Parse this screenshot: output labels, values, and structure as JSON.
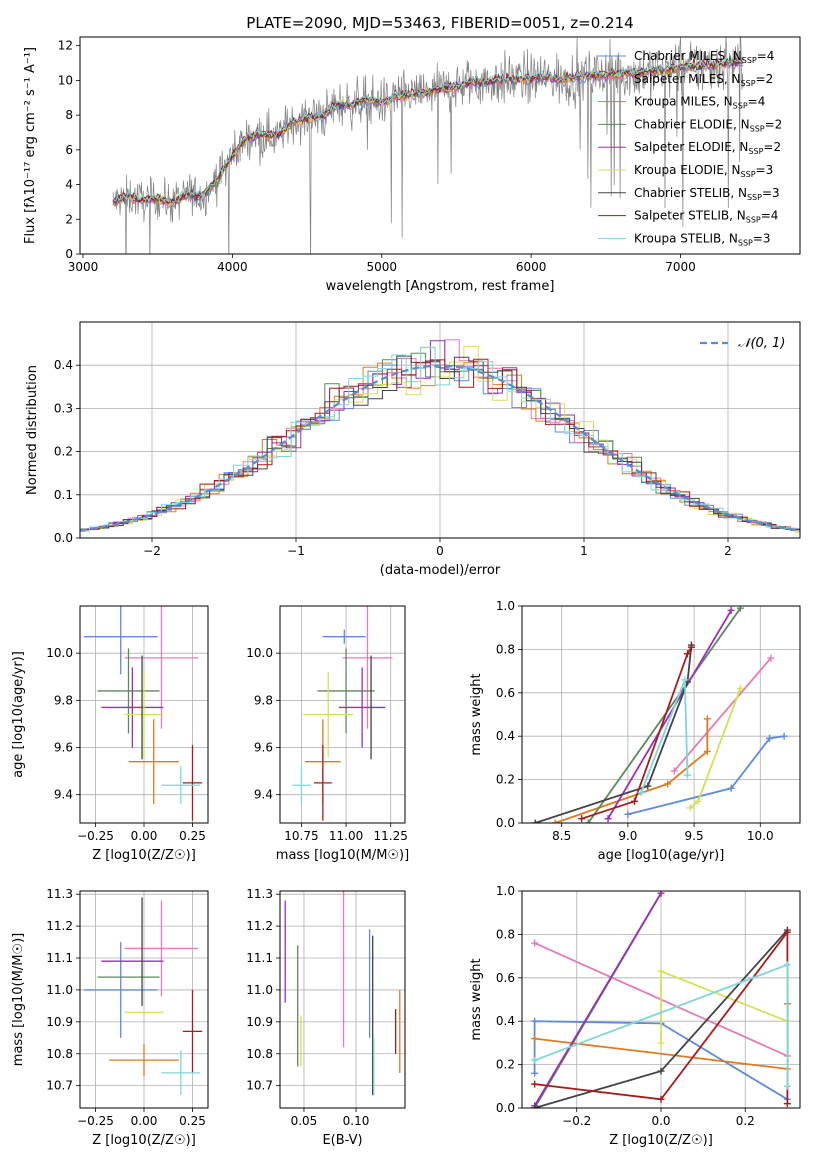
{
  "figure_title": "PLATE=2090, MJD=53463, FIBERID=0051, z=0.214",
  "colors": {
    "Chabrier MILES": "#5e8bdc",
    "Salpeter MILES": "#e67cb5",
    "Kroupa MILES": "#e07a1f",
    "Chabrier ELODIE": "#5a8a5a",
    "Salpeter ELODIE": "#9a2fb8",
    "Kroupa ELODIE": "#d4e157",
    "Chabrier STELIB": "#444444",
    "Salpeter STELIB": "#a51c1c",
    "Kroupa STELIB": "#7fd6dd",
    "data": "#808080",
    "normal": "#5b8bd6",
    "grid": "#b0b0b0"
  },
  "chart_data": [
    {
      "id": "spectrum",
      "type": "line",
      "title": "PLATE=2090, MJD=53463, FIBERID=0051, z=0.214",
      "xlabel": "wavelength [Angstrom, rest frame]",
      "ylabel": "Flux [fλ10⁻¹⁷ erg cm⁻² s⁻¹ A⁻¹]",
      "xlim": [
        2980,
        7800
      ],
      "ylim": [
        0,
        12.5
      ],
      "xticks": [
        3000,
        4000,
        5000,
        6000,
        7000
      ],
      "yticks": [
        0,
        2,
        4,
        6,
        8,
        10,
        12
      ],
      "grid": false,
      "legend_position": "top-right",
      "continuum": {
        "x": [
          3200,
          3300,
          3400,
          3500,
          3600,
          3700,
          3800,
          3900,
          4000,
          4100,
          4200,
          4300,
          4400,
          4500,
          4600,
          4700,
          4800,
          4900,
          5000,
          5100,
          5200,
          5300,
          5400,
          5500,
          5600,
          5700,
          5800,
          5900,
          6000,
          6100,
          6200,
          6300,
          6400,
          6500,
          6600,
          6700,
          6800,
          6900,
          7000,
          7100,
          7200,
          7300,
          7420
        ],
        "y": [
          3.0,
          3.3,
          3.1,
          3.2,
          2.9,
          3.5,
          3.3,
          4.3,
          5.7,
          6.7,
          6.9,
          6.8,
          7.6,
          7.8,
          7.9,
          8.6,
          8.6,
          8.9,
          8.7,
          9.1,
          9.2,
          9.3,
          9.5,
          9.6,
          9.9,
          9.9,
          10.0,
          10.1,
          10.1,
          10.2,
          10.0,
          10.2,
          10.3,
          10.3,
          10.4,
          10.4,
          10.5,
          10.6,
          10.8,
          10.8,
          10.9,
          11.0,
          11.1
        ]
      },
      "series": [
        {
          "name": "Chabrier MILES, N_SSP=4",
          "label_main": "Chabrier MILES, N",
          "label_sub": "SSP",
          "label_tail": "=4",
          "color_key": "Chabrier MILES"
        },
        {
          "name": "Salpeter MILES, N_SSP=2",
          "label_main": "Salpeter MILES, N",
          "label_sub": "SSP",
          "label_tail": "=2",
          "color_key": "Salpeter MILES"
        },
        {
          "name": "Kroupa MILES, N_SSP=4",
          "label_main": "Kroupa MILES, N",
          "label_sub": "SSP",
          "label_tail": "=4",
          "color_key": "Kroupa MILES"
        },
        {
          "name": "Chabrier ELODIE, N_SSP=2",
          "label_main": "Chabrier ELODIE, N",
          "label_sub": "SSP",
          "label_tail": "=2",
          "color_key": "Chabrier ELODIE"
        },
        {
          "name": "Salpeter ELODIE, N_SSP=2",
          "label_main": "Salpeter ELODIE, N",
          "label_sub": "SSP",
          "label_tail": "=2",
          "color_key": "Salpeter ELODIE"
        },
        {
          "name": "Kroupa ELODIE, N_SSP=3",
          "label_main": "Kroupa ELODIE, N",
          "label_sub": "SSP",
          "label_tail": "=3",
          "color_key": "Kroupa ELODIE"
        },
        {
          "name": "Chabrier STELIB, N_SSP=3",
          "label_main": "Chabrier STELIB, N",
          "label_sub": "SSP",
          "label_tail": "=3",
          "color_key": "Chabrier STELIB"
        },
        {
          "name": "Salpeter STELIB, N_SSP=4",
          "label_main": "Salpeter STELIB, N",
          "label_sub": "SSP",
          "label_tail": "=4",
          "color_key": "Salpeter STELIB"
        },
        {
          "name": "Kroupa STELIB, N_SSP=3",
          "label_main": "Kroupa STELIB, N",
          "label_sub": "SSP",
          "label_tail": "=3",
          "color_key": "Kroupa STELIB"
        }
      ]
    },
    {
      "id": "residuals",
      "type": "line",
      "xlabel": "(data-model)/error",
      "ylabel": "Normed distribution",
      "xlim": [
        -2.5,
        2.5
      ],
      "ylim": [
        0,
        0.5
      ],
      "xticks": [
        -2,
        -1,
        0,
        1,
        2
      ],
      "yticks": [
        0.0,
        0.1,
        0.2,
        0.3,
        0.4
      ],
      "grid": true,
      "legend_position": "top-right",
      "normal_label": "𝒩(0, 1)",
      "histogram_bin_width": 0.1
    },
    {
      "id": "age_vs_Z",
      "type": "scatter",
      "xlabel": "Z [log10(Z/Z☉)]",
      "ylabel": "age  [log10(age/yr)]",
      "xlim": [
        -0.33,
        0.33
      ],
      "ylim": [
        9.28,
        10.2
      ],
      "xticks": [
        -0.25,
        0.0,
        0.25
      ],
      "yticks": [
        9.4,
        9.6,
        9.8,
        10.0
      ],
      "grid": true,
      "points": [
        {
          "model": "Chabrier MILES",
          "x": -0.12,
          "xerr": 0.19,
          "y": 10.07,
          "yerr": 0.16
        },
        {
          "model": "Salpeter MILES",
          "x": 0.09,
          "xerr": 0.19,
          "y": 9.98,
          "yerr": 0.3
        },
        {
          "model": "Kroupa MILES",
          "x": 0.05,
          "xerr": 0.13,
          "y": 9.54,
          "yerr": 0.18
        },
        {
          "model": "Chabrier ELODIE",
          "x": -0.08,
          "xerr": 0.16,
          "y": 9.84,
          "yerr": 0.18
        },
        {
          "model": "Salpeter ELODIE",
          "x": -0.06,
          "xerr": 0.16,
          "y": 9.77,
          "yerr": 0.17
        },
        {
          "model": "Kroupa ELODIE",
          "x": 0.0,
          "xerr": 0.1,
          "y": 9.74,
          "yerr": 0.18
        },
        {
          "model": "Chabrier STELIB",
          "x": -0.01,
          "xerr": 0.0,
          "y": 9.77,
          "yerr": 0.22
        },
        {
          "model": "Salpeter STELIB",
          "x": 0.25,
          "xerr": 0.05,
          "y": 9.45,
          "yerr": 0.16
        },
        {
          "model": "Kroupa STELIB",
          "x": 0.19,
          "xerr": 0.1,
          "y": 9.44,
          "yerr": 0.08
        }
      ]
    },
    {
      "id": "age_vs_mass",
      "type": "scatter",
      "xlabel": "mass [log10(M/M☉)]",
      "ylabel": "",
      "xlim": [
        10.63,
        11.33
      ],
      "ylim": [
        9.28,
        10.2
      ],
      "xticks": [
        10.75,
        11.0,
        11.25
      ],
      "yticks": [
        9.4,
        9.6,
        9.8,
        10.0
      ],
      "grid": true,
      "points": [
        {
          "model": "Chabrier MILES",
          "x": 10.99,
          "xerr": 0.12,
          "y": 10.07,
          "yerr": 0.03
        },
        {
          "model": "Salpeter MILES",
          "x": 11.12,
          "xerr": 0.14,
          "y": 9.98,
          "yerr": 0.3
        },
        {
          "model": "Kroupa MILES",
          "x": 10.87,
          "xerr": 0.1,
          "y": 9.54,
          "yerr": 0.18
        },
        {
          "model": "Chabrier ELODIE",
          "x": 11.0,
          "xerr": 0.16,
          "y": 9.84,
          "yerr": 0.18
        },
        {
          "model": "Salpeter ELODIE",
          "x": 11.09,
          "xerr": 0.13,
          "y": 9.77,
          "yerr": 0.17
        },
        {
          "model": "Kroupa ELODIE",
          "x": 10.9,
          "xerr": 0.14,
          "y": 9.74,
          "yerr": 0.18
        },
        {
          "model": "Chabrier STELIB",
          "x": 11.14,
          "xerr": 0.0,
          "y": 9.77,
          "yerr": 0.22
        },
        {
          "model": "Salpeter STELIB",
          "x": 10.87,
          "xerr": 0.05,
          "y": 9.45,
          "yerr": 0.16
        },
        {
          "model": "Kroupa STELIB",
          "x": 10.75,
          "xerr": 0.05,
          "y": 9.44,
          "yerr": 0.08
        }
      ]
    },
    {
      "id": "weight_vs_age",
      "type": "line",
      "xlabel": "age  [log10(age/yr)]",
      "ylabel": "mass weight",
      "xlim": [
        8.2,
        10.3
      ],
      "ylim": [
        0,
        1.0
      ],
      "xticks": [
        8.5,
        9.0,
        9.5,
        10.0
      ],
      "yticks": [
        0.0,
        0.2,
        0.4,
        0.6,
        0.8,
        1.0
      ],
      "grid": true,
      "series": [
        {
          "model": "Chabrier MILES",
          "x": [
            9.0,
            9.78,
            10.07,
            10.18
          ],
          "y": [
            0.04,
            0.16,
            0.39,
            0.4
          ]
        },
        {
          "model": "Salpeter MILES",
          "x": [
            9.35,
            10.08
          ],
          "y": [
            0.24,
            0.76
          ]
        },
        {
          "model": "Kroupa MILES",
          "x": [
            8.45,
            9.3,
            9.6,
            9.6
          ],
          "y": [
            0.0,
            0.18,
            0.33,
            0.48
          ]
        },
        {
          "model": "Chabrier ELODIE",
          "x": [
            8.7,
            9.85
          ],
          "y": [
            0.0,
            0.99
          ]
        },
        {
          "model": "Salpeter ELODIE",
          "x": [
            8.85,
            9.78
          ],
          "y": [
            0.02,
            0.98
          ]
        },
        {
          "model": "Kroupa ELODIE",
          "x": [
            9.47,
            9.53,
            9.85
          ],
          "y": [
            0.07,
            0.1,
            0.62
          ]
        },
        {
          "model": "Chabrier STELIB",
          "x": [
            8.3,
            9.15,
            9.45,
            9.48
          ],
          "y": [
            0.0,
            0.17,
            0.65,
            0.82
          ]
        },
        {
          "model": "Salpeter STELIB",
          "x": [
            8.65,
            9.05,
            9.45,
            9.48
          ],
          "y": [
            0.02,
            0.1,
            0.78,
            0.81
          ]
        },
        {
          "model": "Kroupa STELIB",
          "x": [
            9.1,
            9.43,
            9.45
          ],
          "y": [
            0.14,
            0.66,
            0.22
          ]
        }
      ]
    },
    {
      "id": "mass_vs_Z",
      "type": "scatter",
      "xlabel": "Z [log10(Z/Z☉)]",
      "ylabel": "mass [log10(M/M☉)]",
      "xlim": [
        -0.33,
        0.33
      ],
      "ylim": [
        10.63,
        11.31
      ],
      "xticks": [
        -0.25,
        0.0,
        0.25
      ],
      "yticks": [
        10.7,
        10.8,
        10.9,
        11.0,
        11.1,
        11.2,
        11.3
      ],
      "grid": true,
      "points": [
        {
          "model": "Chabrier MILES",
          "x": -0.12,
          "xerr": 0.19,
          "y": 11.0,
          "yerr": 0.15
        },
        {
          "model": "Salpeter MILES",
          "x": 0.09,
          "xerr": 0.19,
          "y": 11.13,
          "yerr": 0.15
        },
        {
          "model": "Kroupa MILES",
          "x": 0.0,
          "xerr": 0.18,
          "y": 10.78,
          "yerr": 0.05
        },
        {
          "model": "Chabrier ELODIE",
          "x": -0.08,
          "xerr": 0.16,
          "y": 11.04,
          "yerr": 0.0
        },
        {
          "model": "Salpeter ELODIE",
          "x": -0.06,
          "xerr": 0.16,
          "y": 11.09,
          "yerr": 0.0
        },
        {
          "model": "Kroupa ELODIE",
          "x": 0.0,
          "xerr": 0.1,
          "y": 10.93,
          "yerr": 0.0
        },
        {
          "model": "Chabrier STELIB",
          "x": -0.01,
          "xerr": 0.0,
          "y": 11.12,
          "yerr": 0.17
        },
        {
          "model": "Salpeter STELIB",
          "x": 0.25,
          "xerr": 0.05,
          "y": 10.87,
          "yerr": 0.13
        },
        {
          "model": "Kroupa STELIB",
          "x": 0.19,
          "xerr": 0.1,
          "y": 10.74,
          "yerr": 0.07
        }
      ]
    },
    {
      "id": "mass_vs_ebv",
      "type": "scatter",
      "xlabel": "E(B-V)",
      "ylabel": "",
      "xlim": [
        0.027,
        0.147
      ],
      "ylim": [
        10.63,
        11.31
      ],
      "xticks": [
        0.05,
        0.1
      ],
      "yticks": [
        10.7,
        10.8,
        10.9,
        11.0,
        11.1,
        11.2,
        11.3
      ],
      "grid": true,
      "points": [
        {
          "model": "Salpeter ELODIE",
          "x": 0.032,
          "y": 11.12,
          "yerr": 0.16
        },
        {
          "model": "Chabrier ELODIE",
          "x": 0.044,
          "y": 10.95,
          "yerr": 0.19
        },
        {
          "model": "Kroupa ELODIE",
          "x": 0.047,
          "y": 10.84,
          "yerr": 0.08
        },
        {
          "model": "Salpeter MILES",
          "x": 0.088,
          "y": 11.08,
          "yerr": 0.26
        },
        {
          "model": "Chabrier MILES",
          "x": 0.113,
          "y": 11.02,
          "yerr": 0.17
        },
        {
          "model": "Chabrier STELIB",
          "x": 0.116,
          "y": 10.92,
          "yerr": 0.25
        },
        {
          "model": "Kroupa STELIB",
          "x": 0.117,
          "y": 10.76,
          "yerr": 0.09
        },
        {
          "model": "Salpeter STELIB",
          "x": 0.138,
          "y": 10.87,
          "yerr": 0.07
        },
        {
          "model": "Kroupa MILES",
          "x": 0.142,
          "y": 10.87,
          "yerr": 0.13
        }
      ]
    },
    {
      "id": "weight_vs_Z",
      "type": "line",
      "xlabel": "Z [log10(Z/Z☉)]",
      "ylabel": "mass weight",
      "xlim": [
        -0.33,
        0.33
      ],
      "ylim": [
        0,
        1.0
      ],
      "xticks": [
        -0.2,
        0.0,
        0.2
      ],
      "yticks": [
        0.0,
        0.2,
        0.4,
        0.6,
        0.8,
        1.0
      ],
      "grid": true,
      "series": [
        {
          "model": "Chabrier MILES",
          "x": [
            -0.3,
            -0.3,
            0.0,
            0.3
          ],
          "y": [
            0.16,
            0.4,
            0.39,
            0.04
          ]
        },
        {
          "model": "Salpeter MILES",
          "x": [
            -0.3,
            0.3
          ],
          "y": [
            0.76,
            0.24
          ]
        },
        {
          "model": "Kroupa MILES",
          "x": [
            -0.3,
            0.3,
            0.3
          ],
          "y": [
            0.32,
            0.18,
            0.48
          ]
        },
        {
          "model": "Chabrier ELODIE",
          "x": [
            -0.3,
            0.0
          ],
          "y": [
            0.0,
            0.99
          ]
        },
        {
          "model": "Salpeter ELODIE",
          "x": [
            -0.3,
            0.0
          ],
          "y": [
            0.01,
            0.99
          ]
        },
        {
          "model": "Kroupa ELODIE",
          "x": [
            0.0,
            0.0,
            0.3,
            0.3
          ],
          "y": [
            0.3,
            0.63,
            0.4,
            0.1
          ]
        },
        {
          "model": "Chabrier STELIB",
          "x": [
            -0.3,
            0.0,
            0.3
          ],
          "y": [
            0.0,
            0.17,
            0.82
          ]
        },
        {
          "model": "Salpeter STELIB",
          "x": [
            -0.3,
            0.0,
            0.3,
            0.3
          ],
          "y": [
            0.11,
            0.04,
            0.81,
            0.02
          ]
        },
        {
          "model": "Kroupa STELIB",
          "x": [
            -0.3,
            0.3,
            0.3
          ],
          "y": [
            0.22,
            0.66,
            0.1
          ]
        }
      ]
    }
  ]
}
